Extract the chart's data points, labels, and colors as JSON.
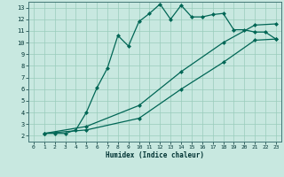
{
  "xlabel": "Humidex (Indice chaleur)",
  "xlim": [
    -0.5,
    23.5
  ],
  "ylim": [
    1.5,
    13.5
  ],
  "xticks": [
    0,
    1,
    2,
    3,
    4,
    5,
    6,
    7,
    8,
    9,
    10,
    11,
    12,
    13,
    14,
    15,
    16,
    17,
    18,
    19,
    20,
    21,
    22,
    23
  ],
  "yticks": [
    2,
    3,
    4,
    5,
    6,
    7,
    8,
    9,
    10,
    11,
    12,
    13
  ],
  "bg_color": "#c8e8e0",
  "grid_color": "#99ccbb",
  "line_color": "#006655",
  "line1_x": [
    1,
    2,
    3,
    4,
    5,
    6,
    7,
    8,
    9,
    10,
    11,
    12,
    13,
    14,
    15,
    16,
    17,
    18,
    19,
    20,
    21,
    22,
    23
  ],
  "line1_y": [
    2.2,
    2.2,
    2.2,
    2.5,
    4.0,
    6.1,
    7.8,
    10.6,
    9.7,
    11.8,
    12.5,
    13.3,
    12.0,
    13.2,
    12.2,
    12.2,
    12.4,
    12.5,
    11.1,
    11.1,
    10.9,
    10.9,
    10.3
  ],
  "line2_x": [
    1,
    5,
    10,
    14,
    18,
    21,
    23
  ],
  "line2_y": [
    2.2,
    2.8,
    4.6,
    7.5,
    10.0,
    11.5,
    11.6
  ],
  "line3_x": [
    1,
    5,
    10,
    14,
    18,
    21,
    23
  ],
  "line3_y": [
    2.2,
    2.5,
    3.5,
    6.0,
    8.3,
    10.2,
    10.3
  ],
  "markersize": 2.5,
  "linewidth": 0.9
}
